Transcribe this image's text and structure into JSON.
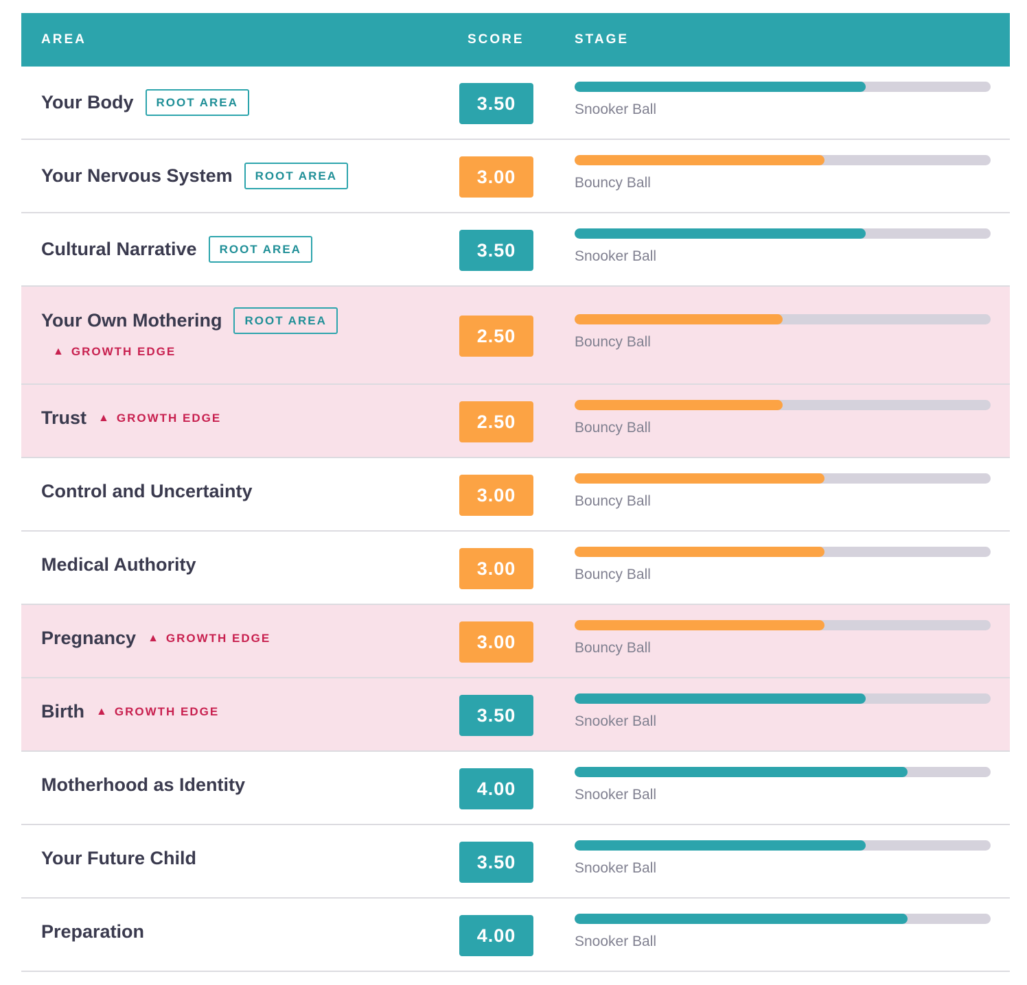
{
  "colors": {
    "teal": "#2ca4ac",
    "orange": "#fca344",
    "track": "#d5d2dc",
    "growth_row_bg": "#f9e1e9",
    "growth_text": "#c8204f"
  },
  "header": {
    "area": "AREA",
    "score": "SCORE",
    "stage": "STAGE"
  },
  "badges": {
    "root": "ROOT AREA",
    "growth": "GROWTH EDGE",
    "growth_icon": "triangle-up-icon"
  },
  "rows": [
    {
      "name": "Your Body",
      "root": true,
      "growth": false,
      "score": "3.50",
      "stage": "Snooker Ball",
      "progress": 0.7,
      "color": "teal"
    },
    {
      "name": "Your Nervous System",
      "root": true,
      "growth": false,
      "score": "3.00",
      "stage": "Bouncy Ball",
      "progress": 0.6,
      "color": "orange"
    },
    {
      "name": "Cultural Narrative",
      "root": true,
      "growth": false,
      "score": "3.50",
      "stage": "Snooker Ball",
      "progress": 0.7,
      "color": "teal"
    },
    {
      "name": "Your Own Mothering",
      "root": true,
      "growth": true,
      "score": "2.50",
      "stage": "Bouncy Ball",
      "progress": 0.5,
      "color": "orange"
    },
    {
      "name": "Trust",
      "root": false,
      "growth": true,
      "score": "2.50",
      "stage": "Bouncy Ball",
      "progress": 0.5,
      "color": "orange"
    },
    {
      "name": "Control and Uncertainty",
      "root": false,
      "growth": false,
      "score": "3.00",
      "stage": "Bouncy Ball",
      "progress": 0.6,
      "color": "orange"
    },
    {
      "name": "Medical Authority",
      "root": false,
      "growth": false,
      "score": "3.00",
      "stage": "Bouncy Ball",
      "progress": 0.6,
      "color": "orange"
    },
    {
      "name": "Pregnancy",
      "root": false,
      "growth": true,
      "score": "3.00",
      "stage": "Bouncy Ball",
      "progress": 0.6,
      "color": "orange"
    },
    {
      "name": "Birth",
      "root": false,
      "growth": true,
      "score": "3.50",
      "stage": "Snooker Ball",
      "progress": 0.7,
      "color": "teal"
    },
    {
      "name": "Motherhood as Identity",
      "root": false,
      "growth": false,
      "score": "4.00",
      "stage": "Snooker Ball",
      "progress": 0.8,
      "color": "teal"
    },
    {
      "name": "Your Future Child",
      "root": false,
      "growth": false,
      "score": "3.50",
      "stage": "Snooker Ball",
      "progress": 0.7,
      "color": "teal"
    },
    {
      "name": "Preparation",
      "root": false,
      "growth": false,
      "score": "4.00",
      "stage": "Snooker Ball",
      "progress": 0.8,
      "color": "teal"
    }
  ]
}
